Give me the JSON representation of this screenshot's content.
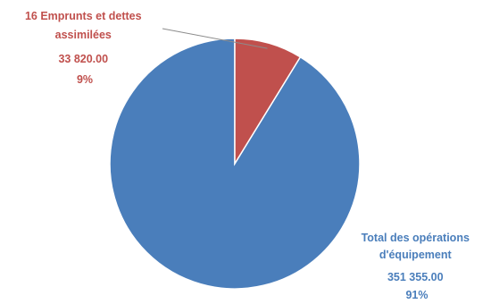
{
  "chart_data": {
    "type": "pie",
    "title": "",
    "slices": [
      {
        "label_lines": [
          "Total des opérations",
          "d'équipement"
        ],
        "value": 351355.0,
        "value_text": "351 355.00",
        "percent_text": "91%",
        "color": "#4a7ebb"
      },
      {
        "label_lines": [
          "16  Emprunts et dettes",
          "assimilées"
        ],
        "value": 33820.0,
        "value_text": "33 820.00",
        "percent_text": "9%",
        "color": "#c0504d"
      }
    ]
  }
}
